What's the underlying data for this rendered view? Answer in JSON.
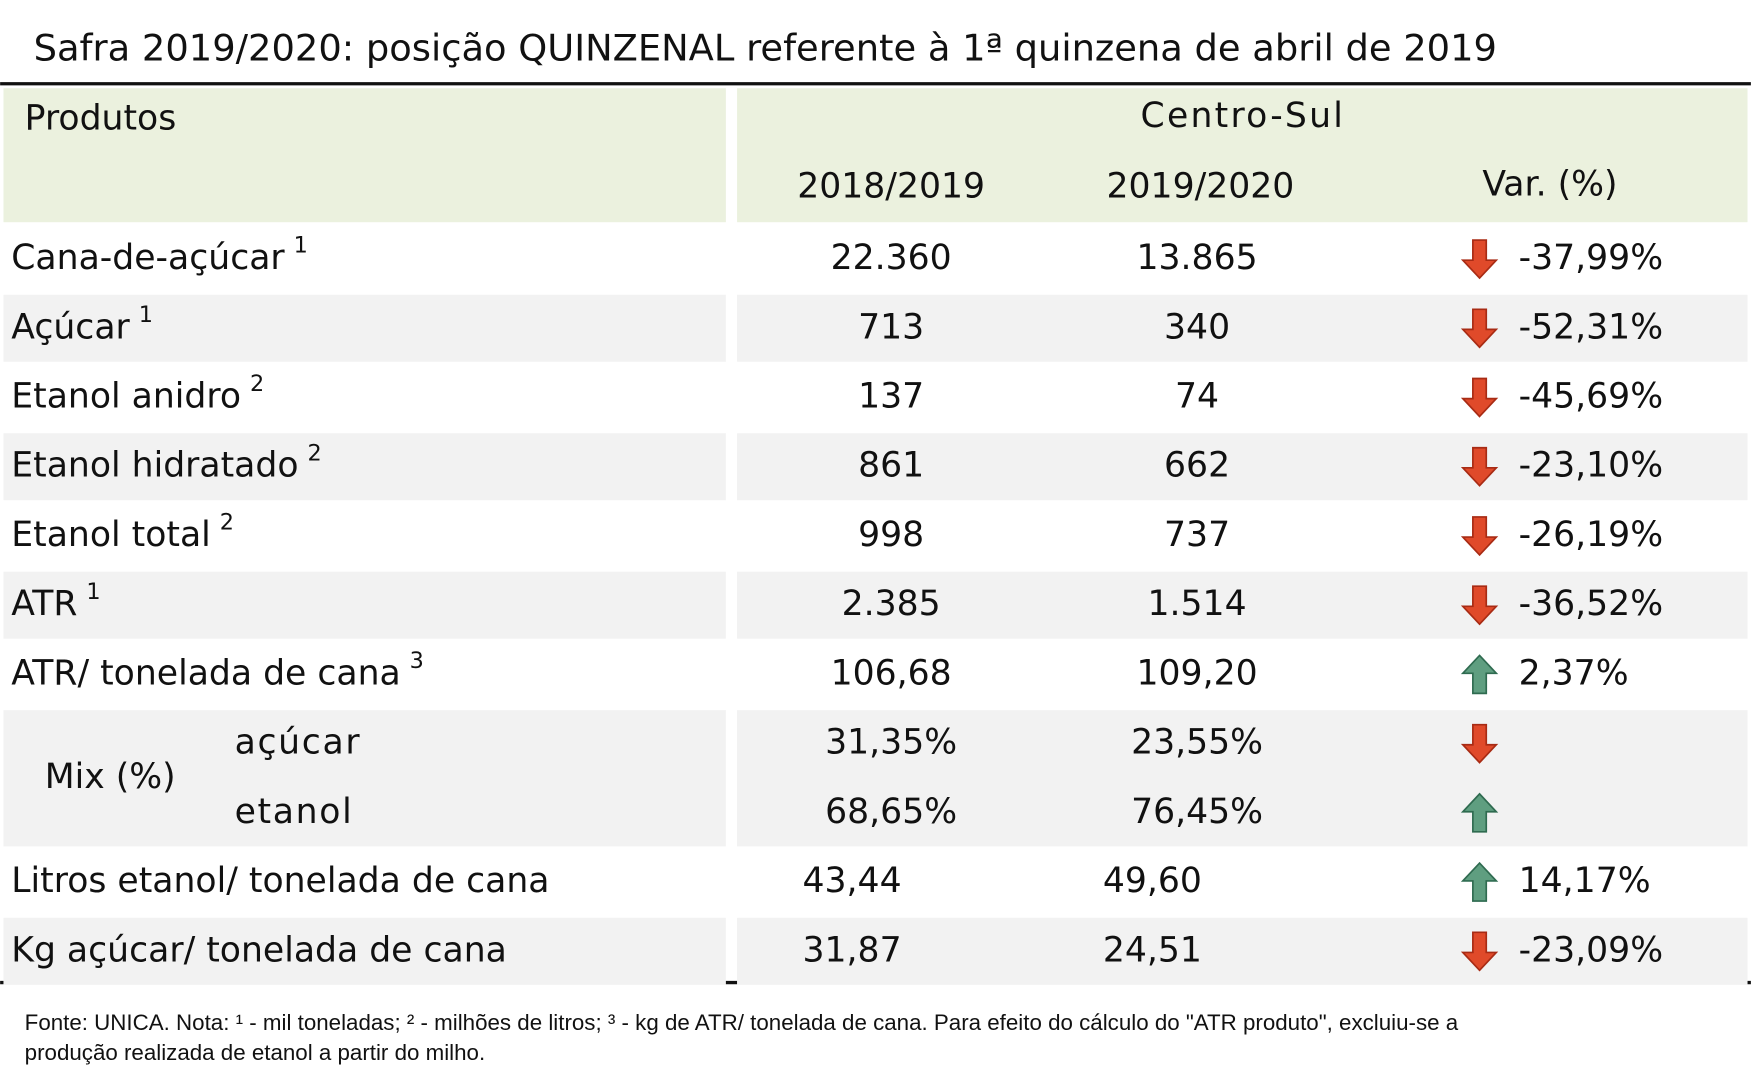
{
  "title": "Safra 2019/2020: posição QUINZENAL referente à 1ª quinzena de abril de 2019",
  "header": {
    "products": "Produtos",
    "region": "Centro-Sul",
    "columns": [
      "2018/2019",
      "2019/2020",
      "Var. (%)"
    ]
  },
  "rows": [
    {
      "label": "Cana-de-açúcar",
      "note": "1",
      "values": [
        "22.360",
        "13.865",
        "-37,99%"
      ],
      "arrow": "down"
    },
    {
      "label": "Açúcar",
      "note": "1",
      "values": [
        "713",
        "340",
        "-52,31%"
      ],
      "arrow": "down"
    },
    {
      "label": "Etanol anidro",
      "note": "2",
      "values": [
        "137",
        "74",
        "-45,69%"
      ],
      "arrow": "down"
    },
    {
      "label": "Etanol hidratado",
      "note": "2",
      "values": [
        "861",
        "662",
        "-23,10%"
      ],
      "arrow": "down"
    },
    {
      "label": "Etanol total",
      "note": "2",
      "values": [
        "998",
        "737",
        "-26,19%"
      ],
      "arrow": "down"
    },
    {
      "label": "ATR",
      "note": "1",
      "values": [
        "2.385",
        "1.514",
        "-36,52%"
      ],
      "arrow": "down"
    },
    {
      "label": "ATR/ tonelada de cana",
      "note": "3",
      "values": [
        "106,68",
        "109,20",
        "2,37%"
      ],
      "arrow": "up"
    },
    {
      "label": "Mix (%)",
      "parts": [
        {
          "label": "açúcar",
          "values": [
            "31,35%",
            "23,55%"
          ],
          "arrow": "down"
        },
        {
          "label": "etanol",
          "values": [
            "68,65%",
            "76,45%"
          ],
          "arrow": "up"
        }
      ]
    },
    {
      "label": "Litros etanol/ tonelada de cana",
      "values": [
        "43,44",
        "49,60",
        "14,17%"
      ],
      "arrow": "up"
    },
    {
      "label": "Kg açúcar/ tonelada de cana",
      "values": [
        "31,87",
        "24,51",
        "-23,09%"
      ],
      "arrow": "down"
    }
  ],
  "footnote": [
    "Fonte: UNICA. Nota: ¹ - mil toneladas; ² - milhões de litros; ³ - kg de ATR/ tonelada de cana. Para efeito do cálculo do \"ATR produto\", excluiu-se a",
    "produção realizada de etanol a partir do milho."
  ]
}
